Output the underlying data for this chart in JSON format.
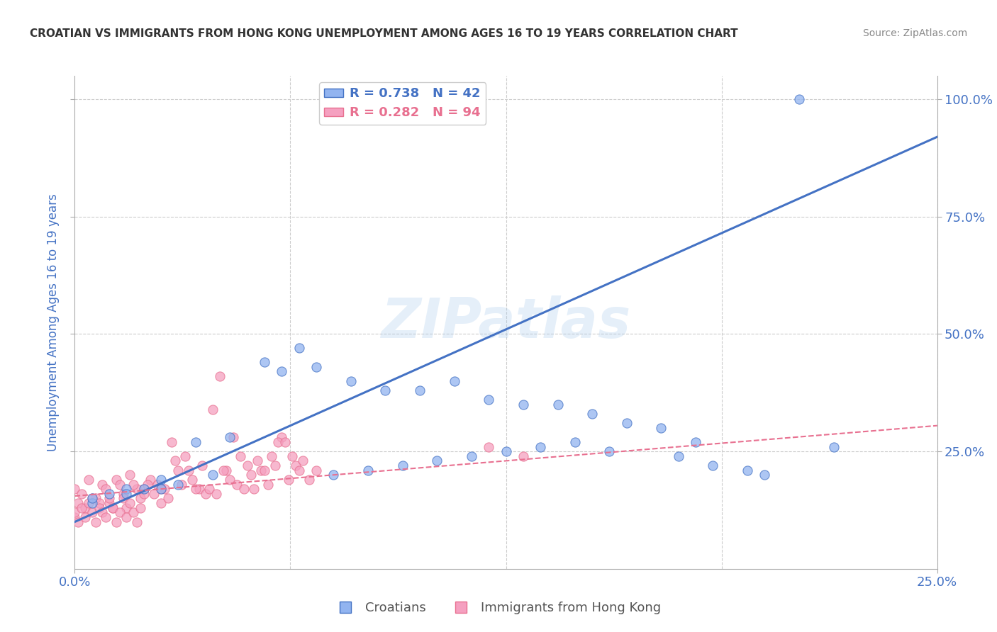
{
  "title": "CROATIAN VS IMMIGRANTS FROM HONG KONG UNEMPLOYMENT AMONG AGES 16 TO 19 YEARS CORRELATION CHART",
  "source": "Source: ZipAtlas.com",
  "ylabel": "Unemployment Among Ages 16 to 19 years",
  "legend_blue": {
    "R": 0.738,
    "N": 42,
    "label": "Croatians"
  },
  "legend_pink": {
    "R": 0.282,
    "N": 94,
    "label": "Immigrants from Hong Kong"
  },
  "blue_color": "#92B4F0",
  "pink_color": "#F5A0C0",
  "blue_line_color": "#4472C4",
  "pink_line_color": "#E87090",
  "watermark": "ZIPatlas",
  "xmin": 0.0,
  "xmax": 0.25,
  "ymin": 0.0,
  "ymax": 1.05,
  "blue_scatter_x": [
    0.21,
    0.07,
    0.08,
    0.09,
    0.1,
    0.11,
    0.12,
    0.13,
    0.14,
    0.15,
    0.16,
    0.065,
    0.055,
    0.045,
    0.035,
    0.025,
    0.015,
    0.005,
    0.175,
    0.155,
    0.195,
    0.185,
    0.135,
    0.125,
    0.115,
    0.105,
    0.095,
    0.085,
    0.075,
    0.005,
    0.01,
    0.015,
    0.02,
    0.025,
    0.03,
    0.04,
    0.06,
    0.17,
    0.18,
    0.2,
    0.22,
    0.145
  ],
  "blue_scatter_y": [
    1.0,
    0.43,
    0.4,
    0.38,
    0.38,
    0.4,
    0.36,
    0.35,
    0.35,
    0.33,
    0.31,
    0.47,
    0.44,
    0.28,
    0.27,
    0.19,
    0.17,
    0.14,
    0.24,
    0.25,
    0.21,
    0.22,
    0.26,
    0.25,
    0.24,
    0.23,
    0.22,
    0.21,
    0.2,
    0.15,
    0.16,
    0.16,
    0.17,
    0.17,
    0.18,
    0.2,
    0.42,
    0.3,
    0.27,
    0.2,
    0.26,
    0.27
  ],
  "pink_scatter_x": [
    0.0,
    0.002,
    0.004,
    0.006,
    0.008,
    0.01,
    0.012,
    0.014,
    0.016,
    0.018,
    0.02,
    0.022,
    0.024,
    0.026,
    0.028,
    0.03,
    0.032,
    0.034,
    0.036,
    0.038,
    0.04,
    0.042,
    0.044,
    0.046,
    0.048,
    0.05,
    0.052,
    0.054,
    0.056,
    0.058,
    0.06,
    0.062,
    0.064,
    0.066,
    0.068,
    0.07,
    0.001,
    0.003,
    0.005,
    0.007,
    0.009,
    0.011,
    0.013,
    0.015,
    0.017,
    0.019,
    0.021,
    0.023,
    0.025,
    0.027,
    0.029,
    0.031,
    0.033,
    0.035,
    0.037,
    0.039,
    0.041,
    0.043,
    0.045,
    0.047,
    0.049,
    0.051,
    0.053,
    0.055,
    0.057,
    0.059,
    0.061,
    0.063,
    0.065,
    0.0,
    0.0,
    0.001,
    0.002,
    0.003,
    0.004,
    0.005,
    0.006,
    0.007,
    0.008,
    0.009,
    0.01,
    0.011,
    0.012,
    0.013,
    0.014,
    0.015,
    0.016,
    0.017,
    0.018,
    0.019,
    0.02,
    0.025,
    0.13,
    0.12
  ],
  "pink_scatter_y": [
    0.17,
    0.16,
    0.19,
    0.15,
    0.18,
    0.14,
    0.19,
    0.16,
    0.2,
    0.17,
    0.17,
    0.19,
    0.18,
    0.17,
    0.27,
    0.21,
    0.24,
    0.19,
    0.17,
    0.16,
    0.34,
    0.41,
    0.21,
    0.28,
    0.24,
    0.22,
    0.17,
    0.21,
    0.18,
    0.22,
    0.28,
    0.19,
    0.22,
    0.23,
    0.19,
    0.21,
    0.14,
    0.13,
    0.15,
    0.14,
    0.17,
    0.13,
    0.18,
    0.13,
    0.18,
    0.15,
    0.18,
    0.16,
    0.14,
    0.15,
    0.23,
    0.18,
    0.21,
    0.17,
    0.22,
    0.17,
    0.16,
    0.21,
    0.19,
    0.18,
    0.17,
    0.2,
    0.23,
    0.21,
    0.24,
    0.27,
    0.27,
    0.24,
    0.21,
    0.11,
    0.12,
    0.1,
    0.13,
    0.11,
    0.14,
    0.12,
    0.1,
    0.13,
    0.12,
    0.11,
    0.15,
    0.13,
    0.1,
    0.12,
    0.15,
    0.11,
    0.14,
    0.12,
    0.1,
    0.13,
    0.16,
    0.17,
    0.24,
    0.26
  ],
  "blue_line_y_intercept": 0.1,
  "blue_line_slope": 3.28,
  "pink_line_y_intercept": 0.155,
  "pink_line_slope": 0.6,
  "background_color": "#FFFFFF",
  "grid_color": "#CCCCCC",
  "title_color": "#333333",
  "axis_label_color": "#4472C4",
  "tick_label_color": "#4472C4"
}
